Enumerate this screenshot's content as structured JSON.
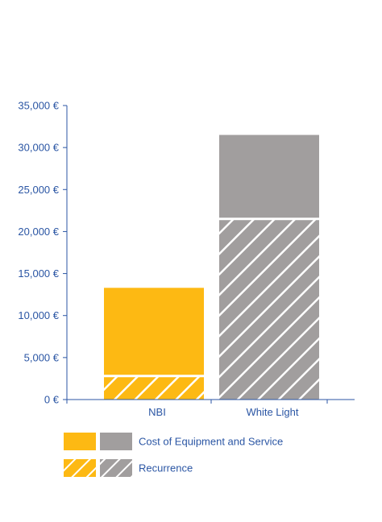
{
  "chart_data": {
    "type": "bar",
    "stacked": true,
    "categories": [
      "NBI",
      "White Light"
    ],
    "series": [
      {
        "name": "Recurrence",
        "pattern": "hatched",
        "values": [
          2800,
          21500
        ]
      },
      {
        "name": "Cost of Equipment and Service",
        "pattern": "solid",
        "values": [
          10500,
          10000
        ]
      }
    ],
    "category_colors": {
      "NBI": "#FDB913",
      "White Light": "#A19E9E"
    },
    "axis_color": "#2B56A4",
    "ylim": [
      0,
      35000
    ],
    "yticks": [
      0,
      5000,
      10000,
      15000,
      20000,
      25000,
      30000,
      35000
    ],
    "ytick_labels": [
      "0 €",
      "5,000 €",
      "10,000 €",
      "15,000 €",
      "20,000 €",
      "25,000 €",
      "30,000 €",
      "35,000 €"
    ],
    "grid": false,
    "legend": [
      {
        "label": "Cost of Equipment and Service",
        "pattern": "solid"
      },
      {
        "label": "Recurrence",
        "pattern": "hatched"
      }
    ],
    "legend_position": "bottom-center"
  }
}
